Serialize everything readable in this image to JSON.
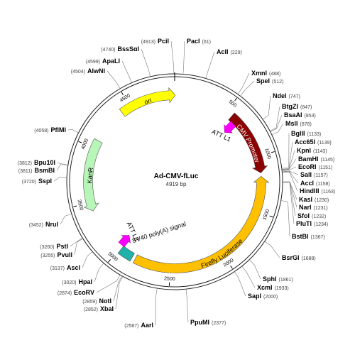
{
  "plasmid": {
    "name": "Ad-CMV-fLuc",
    "length_label": "4919 bp",
    "total_bp": 4919
  },
  "ticks": [
    "500",
    "1000",
    "1500",
    "2000",
    "2500",
    "3000",
    "3500",
    "4000",
    "4500"
  ],
  "features": [
    {
      "name": "CMV Promoter",
      "color": "#8B0000",
      "start": 560,
      "end": 1150,
      "dir": 1
    },
    {
      "name": "Firefly Luciferase",
      "color": "#FFC000",
      "start": 1180,
      "end": 2830,
      "dir": -1
    },
    {
      "name": "SV40 poly(A) signal",
      "color": "#20B2AA",
      "start": 2860,
      "end": 2985,
      "dir": 0
    },
    {
      "name": "KanR",
      "color": "#B8F5B8",
      "start": 3420,
      "end": 4075,
      "dir": -1
    },
    {
      "name": "ori",
      "color": "#FFFF00",
      "start": 4410,
      "end": 4925,
      "dir": 1
    }
  ],
  "att_sites": [
    {
      "name": "ATT L1",
      "color": "#FF00FF",
      "bp": 620,
      "label_side": "in"
    },
    {
      "name": "ATT L2",
      "color": "#FF00FF",
      "bp": 3010,
      "label_side": "in"
    }
  ],
  "sites": [
    {
      "name": "PciI",
      "pos": "(4913)"
    },
    {
      "name": "PacI",
      "pos": "(61)"
    },
    {
      "name": "BssSαI",
      "pos": "(4740)"
    },
    {
      "name": "AclI",
      "pos": "(229)"
    },
    {
      "name": "ApaLI",
      "pos": "(4599)"
    },
    {
      "name": "AlwNI",
      "pos": "(4504)"
    },
    {
      "name": "XmnI",
      "pos": "(488)"
    },
    {
      "name": "SpeI",
      "pos": "(512)"
    },
    {
      "name": "NdeI",
      "pos": "(747)"
    },
    {
      "name": "BtgZI",
      "pos": "(847)"
    },
    {
      "name": "BsaAI",
      "pos": "(853)"
    },
    {
      "name": "MslI",
      "pos": "(878)"
    },
    {
      "name": "BglII",
      "pos": "(1133)"
    },
    {
      "name": "Acc65I",
      "pos": "(1139)"
    },
    {
      "name": "KpnI",
      "pos": "(1143)"
    },
    {
      "name": "BamHI",
      "pos": "(1145)"
    },
    {
      "name": "EcoRI",
      "pos": "(1151)"
    },
    {
      "name": "SalI",
      "pos": "(1157)"
    },
    {
      "name": "AccI",
      "pos": "(1158)"
    },
    {
      "name": "HindIII",
      "pos": "(1163)"
    },
    {
      "name": "KasI",
      "pos": "(1230)"
    },
    {
      "name": "NarI",
      "pos": "(1231)"
    },
    {
      "name": "SfoI",
      "pos": "(1232)"
    },
    {
      "name": "PluTI",
      "pos": "(1234)"
    },
    {
      "name": "BstBI",
      "pos": "(1367)"
    },
    {
      "name": "BsrGI",
      "pos": "(1688)"
    },
    {
      "name": "SphI",
      "pos": "(1861)"
    },
    {
      "name": "XcmI",
      "pos": "(1933)"
    },
    {
      "name": "SapI",
      "pos": "(2000)"
    },
    {
      "name": "PpuMI",
      "pos": "(2377)"
    },
    {
      "name": "AarI",
      "pos": "(2587)"
    },
    {
      "name": "XbaI",
      "pos": "(2852)"
    },
    {
      "name": "NotI",
      "pos": "(2859)"
    },
    {
      "name": "EcoRV",
      "pos": "(2874)"
    },
    {
      "name": "HpaI",
      "pos": "(3020)"
    },
    {
      "name": "AscI",
      "pos": "(3137)"
    },
    {
      "name": "PvuII",
      "pos": "(3255)"
    },
    {
      "name": "PstI",
      "pos": "(3260)"
    },
    {
      "name": "NruI",
      "pos": "(3452)"
    },
    {
      "name": "SspI",
      "pos": "(3720)"
    },
    {
      "name": "BsmBI",
      "pos": "(3811)"
    },
    {
      "name": "Bpu10I",
      "pos": "(3812)"
    },
    {
      "name": "PflMI",
      "pos": "(4058)"
    }
  ]
}
